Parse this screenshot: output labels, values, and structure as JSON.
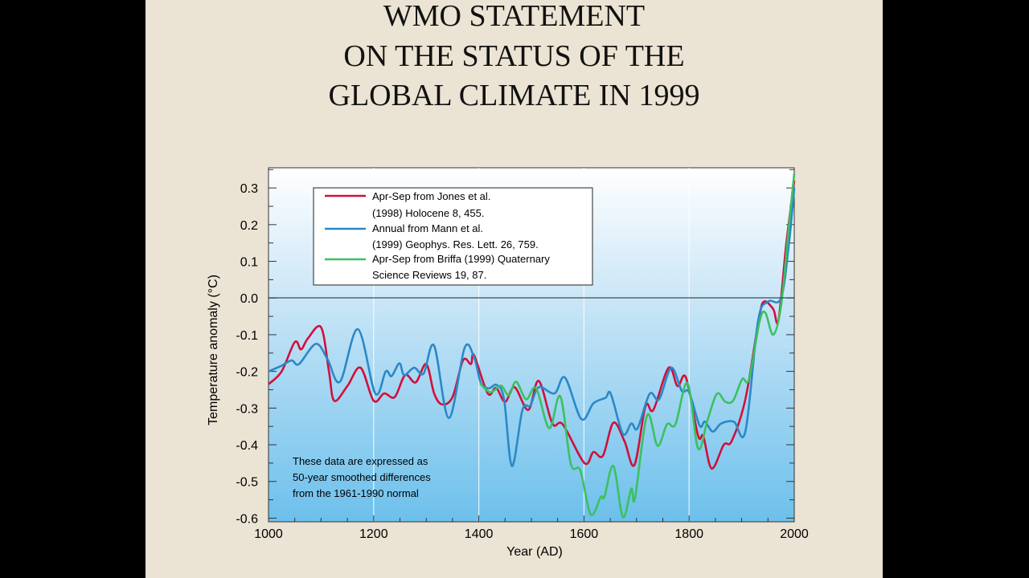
{
  "title_lines": [
    "WMO STATEMENT",
    "ON THE STATUS OF THE",
    "GLOBAL CLIMATE IN 1999"
  ],
  "chart_data": {
    "type": "line",
    "xlabel": "Year (AD)",
    "ylabel": "Temperature anomaly (°C)",
    "xlim": [
      1000,
      2000
    ],
    "ylim": [
      -0.61,
      0.355
    ],
    "xticks": [
      1000,
      1200,
      1400,
      1600,
      1800,
      2000
    ],
    "xtick_labels": [
      "1000",
      "1200",
      "1400",
      "1600",
      "1800",
      "2000"
    ],
    "yticks": [
      0.3,
      0.2,
      0.1,
      0.0,
      -0.1,
      -0.2,
      -0.3,
      -0.4,
      -0.5,
      -0.6
    ],
    "ytick_labels": [
      "0.3",
      "0.2",
      "0.1",
      "0.0",
      "-0.1",
      "-0.2",
      "-0.3",
      "-0.4",
      "-0.5",
      "-0.6"
    ],
    "legend_placement": "top-left",
    "annotation": [
      "These data are expressed as",
      "50-year smoothed differences",
      "from the 1961-1990 normal"
    ],
    "series": [
      {
        "name": "Apr-Sep from Jones et al. (1998) Holocene 8, 455.",
        "legend_lines": [
          "Apr-Sep from Jones et al.",
          "(1998) Holocene 8, 455."
        ],
        "color": "#d0103a",
        "x": [
          1000,
          1025,
          1050,
          1062,
          1075,
          1100,
          1115,
          1125,
          1150,
          1175,
          1200,
          1220,
          1240,
          1260,
          1280,
          1300,
          1315,
          1330,
          1350,
          1370,
          1385,
          1391,
          1417,
          1433,
          1450,
          1468,
          1494,
          1514,
          1540,
          1560,
          1601,
          1618,
          1636,
          1656,
          1677,
          1696,
          1717,
          1732,
          1761,
          1778,
          1794,
          1817,
          1827,
          1843,
          1866,
          1881,
          1907,
          1932,
          1942,
          1960,
          1970,
          1985,
          2000
        ],
        "y": [
          -0.235,
          -0.2,
          -0.12,
          -0.14,
          -0.11,
          -0.08,
          -0.2,
          -0.28,
          -0.24,
          -0.19,
          -0.28,
          -0.26,
          -0.27,
          -0.21,
          -0.23,
          -0.18,
          -0.26,
          -0.29,
          -0.27,
          -0.17,
          -0.18,
          -0.156,
          -0.26,
          -0.245,
          -0.283,
          -0.243,
          -0.305,
          -0.226,
          -0.342,
          -0.345,
          -0.45,
          -0.42,
          -0.43,
          -0.34,
          -0.39,
          -0.455,
          -0.295,
          -0.305,
          -0.19,
          -0.24,
          -0.217,
          -0.375,
          -0.377,
          -0.465,
          -0.4,
          -0.39,
          -0.276,
          -0.064,
          -0.01,
          -0.03,
          -0.06,
          0.15,
          0.32
        ]
      },
      {
        "name": "Annual from Mann et al. (1999) Geophys. Res. Lett. 26, 759.",
        "legend_lines": [
          "Annual from Mann et al.",
          "(1999) Geophys. Res. Lett. 26, 759."
        ],
        "color": "#2a88c8",
        "x": [
          1000,
          1024,
          1044,
          1058,
          1090,
          1112,
          1136,
          1170,
          1203,
          1223,
          1234,
          1249,
          1258,
          1277,
          1295,
          1315,
          1343,
          1373,
          1391,
          1404,
          1419,
          1434,
          1448,
          1463,
          1483,
          1498,
          1514,
          1544,
          1564,
          1595,
          1618,
          1641,
          1651,
          1674,
          1690,
          1702,
          1725,
          1743,
          1766,
          1786,
          1800,
          1820,
          1830,
          1845,
          1861,
          1885,
          1907,
          1931,
          1950,
          1975,
          1990,
          2000
        ],
        "y": [
          -0.2,
          -0.185,
          -0.17,
          -0.18,
          -0.125,
          -0.166,
          -0.228,
          -0.085,
          -0.26,
          -0.2,
          -0.213,
          -0.178,
          -0.21,
          -0.19,
          -0.206,
          -0.13,
          -0.327,
          -0.136,
          -0.162,
          -0.232,
          -0.246,
          -0.237,
          -0.276,
          -0.458,
          -0.305,
          -0.293,
          -0.243,
          -0.26,
          -0.217,
          -0.33,
          -0.287,
          -0.272,
          -0.261,
          -0.37,
          -0.342,
          -0.355,
          -0.261,
          -0.276,
          -0.19,
          -0.253,
          -0.257,
          -0.348,
          -0.337,
          -0.364,
          -0.342,
          -0.337,
          -0.364,
          -0.064,
          -0.01,
          0.0,
          0.15,
          0.3
        ]
      },
      {
        "name": "Apr-Sep from Briffa (1999) Quaternary Science Reviews 19, 87.",
        "legend_lines": [
          "Apr-Sep from Briffa (1999) Quaternary",
          "Science Reviews 19, 87."
        ],
        "color": "#3cc060",
        "x": [
          1402,
          1422,
          1442,
          1457,
          1471,
          1490,
          1509,
          1534,
          1555,
          1575,
          1593,
          1613,
          1632,
          1639,
          1656,
          1674,
          1690,
          1697,
          1720,
          1740,
          1758,
          1774,
          1797,
          1817,
          1835,
          1853,
          1869,
          1884,
          1901,
          1914,
          1934,
          1945,
          1960,
          1975,
          1990,
          2000
        ],
        "y": [
          -0.232,
          -0.257,
          -0.239,
          -0.265,
          -0.228,
          -0.276,
          -0.246,
          -0.355,
          -0.268,
          -0.452,
          -0.47,
          -0.59,
          -0.542,
          -0.542,
          -0.458,
          -0.597,
          -0.52,
          -0.546,
          -0.32,
          -0.403,
          -0.344,
          -0.344,
          -0.232,
          -0.41,
          -0.333,
          -0.261,
          -0.283,
          -0.279,
          -0.221,
          -0.221,
          -0.064,
          -0.04,
          -0.1,
          -0.02,
          0.2,
          0.34
        ]
      }
    ]
  }
}
